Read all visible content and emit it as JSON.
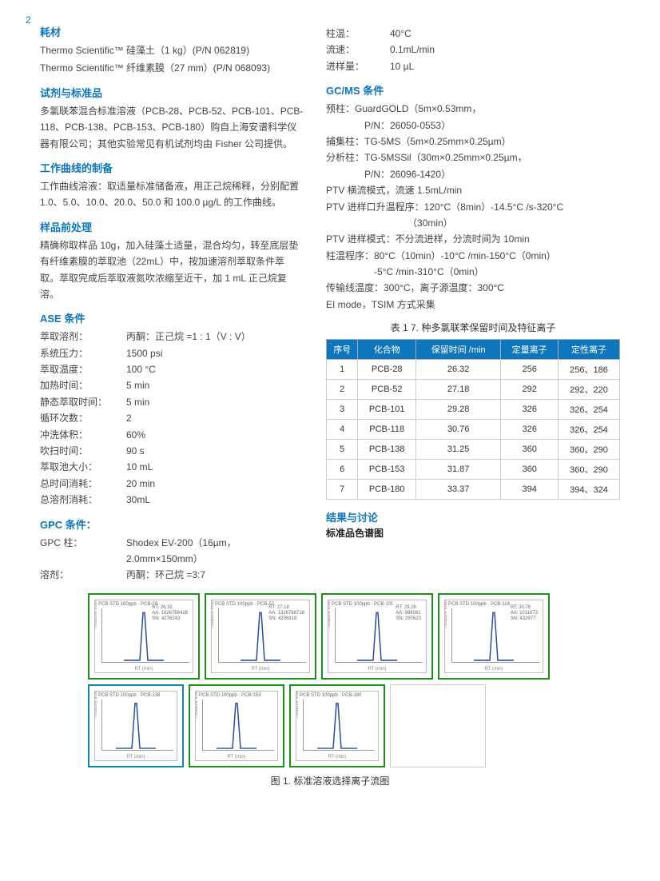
{
  "page_number": "2",
  "left": {
    "consumables": {
      "heading": "耗材",
      "lines": [
        "Thermo Scientific™ 硅藻土（1 kg）(P/N 062819)",
        "Thermo Scientific™ 纤维素膜（27 mm）(P/N 068093)"
      ]
    },
    "reagents": {
      "heading": "试剂与标准品",
      "text": "多氯联苯混合标准溶液（PCB-28、PCB-52、PCB-101、PCB-118、PCB-138、PCB-153、PCB-180）购自上海安谱科学仪器有限公司；其他实验常见有机试剂均由 Fisher 公司提供。"
    },
    "curve": {
      "heading": "工作曲线的制备",
      "text": "工作曲线溶液：取适量标准储备液，用正己烷稀释，分别配置 1.0、5.0、10.0、20.0、50.0 和 100.0 µg/L 的工作曲线。"
    },
    "pretreat": {
      "heading": "样品前处理",
      "text": "精确称取样品 10g，加入硅藻土适量，混合均匀，转至底层垫有纤维素膜的萃取池（22mL）中，按加速溶剂萃取条件萃取。萃取完成后萃取液氮吹浓缩至近干，加 1 mL 正己烷复溶。"
    },
    "ase": {
      "heading": "ASE 条件",
      "rows": [
        {
          "k": "萃取溶剂：",
          "v": "丙酮：正己烷 =1 : 1（V : V）"
        },
        {
          "k": "系统压力：",
          "v": "1500 psi"
        },
        {
          "k": "萃取温度：",
          "v": "100 °C"
        },
        {
          "k": "加热时间：",
          "v": "5 min"
        },
        {
          "k": "静态萃取时间：",
          "v": "5 min"
        },
        {
          "k": "循环次数：",
          "v": "2"
        },
        {
          "k": "冲洗体积：",
          "v": "60%"
        },
        {
          "k": "吹扫时间：",
          "v": "90 s"
        },
        {
          "k": "萃取池大小：",
          "v": "10 mL"
        },
        {
          "k": "总时间消耗：",
          "v": "20 min"
        },
        {
          "k": "总溶剂消耗：",
          "v": "30mL"
        }
      ]
    },
    "gpc": {
      "heading": "GPC 条件：",
      "rows": [
        {
          "k": "GPC 柱：",
          "v": "Shodex EV-200（16µm，2.0mm×150mm）"
        },
        {
          "k": "溶剂：",
          "v": "丙酮：环己烷 =3:7"
        }
      ]
    }
  },
  "right": {
    "gpc_cont": [
      {
        "k": "柱温：",
        "v": "40°C"
      },
      {
        "k": "流速：",
        "v": "0.1mL/min"
      },
      {
        "k": "进样量：",
        "v": "10 µL"
      }
    ],
    "gcms": {
      "heading": "GC/MS 条件",
      "lines": [
        "预柱：GuardGOLD（5m×0.53mm，",
        "　　　　P/N：26050-0553）",
        "捕集柱：TG-5MS（5m×0.25mm×0.25µm）",
        "分析柱：TG-5MSSil（30m×0.25mm×0.25µm，",
        "　　　　P/N：26096-1420）",
        "PTV 横流模式，流速 1.5mL/min",
        "PTV 进样口升温程序：120°C（8min）-14.5°C /s-320°C",
        "　　　　　　　　　（30min）",
        "PTV 进样模式：不分流进样，分流时间为 10min",
        "柱温程序：80°C（10min）-10°C /min-150°C（0min）",
        "　　　　　-5°C /min-310°C（0min）",
        "传输线温度：300°C，离子源温度：300°C",
        "EI mode，TSIM 方式采集"
      ]
    },
    "table": {
      "caption": "表 1 7. 种多氯联苯保留时间及特征离子",
      "headers": [
        "序号",
        "化合物",
        "保留时间 /min",
        "定量离子",
        "定性离子"
      ],
      "rows": [
        [
          "1",
          "PCB-28",
          "26.32",
          "256",
          "256、186"
        ],
        [
          "2",
          "PCB-52",
          "27.18",
          "292",
          "292、220"
        ],
        [
          "3",
          "PCB-101",
          "29.28",
          "326",
          "326、254"
        ],
        [
          "4",
          "PCB-118",
          "30.76",
          "326",
          "326、254"
        ],
        [
          "5",
          "PCB-138",
          "31.25",
          "360",
          "360、290"
        ],
        [
          "6",
          "PCB-153",
          "31.87",
          "360",
          "360、290"
        ],
        [
          "7",
          "PCB-180",
          "33.37",
          "394",
          "394、324"
        ]
      ]
    },
    "results_heading": "结果与讨论",
    "results_sub": "标准品色谱图"
  },
  "chroms": {
    "row1": [
      {
        "border": "#1a8f1a",
        "title": "PCB STD 100ppb · PCB-28",
        "rt": "RT: 26.32",
        "aa": "AA: 1626766428",
        "sn": "SN: 4276243"
      },
      {
        "border": "#1a8f1a",
        "title": "PCB STD 100ppb · PCB-52",
        "rt": "RT: 27.18",
        "aa": "AA: 1326768718",
        "sn": "SN: 4206918"
      },
      {
        "border": "#1a8f1a",
        "title": "PCB STD 100ppb · PCB-101",
        "rt": "RT: 29.28",
        "aa": "AA: 986061",
        "sn": "SN: 297623"
      },
      {
        "border": "#1a8f1a",
        "title": "PCB STD 100ppb · PCB-118",
        "rt": "RT: 30.76",
        "aa": "AA: 1011673",
        "sn": "SN: 432977"
      }
    ],
    "row2": [
      {
        "border": "#0e89a0",
        "title": "PCB STD 100ppb · PCB-138",
        "rt": "",
        "aa": "",
        "sn": ""
      },
      {
        "border": "#1a8f1a",
        "title": "PCB STD 100ppb · PCB-153",
        "rt": "",
        "aa": "",
        "sn": ""
      },
      {
        "border": "#1a8f1a",
        "title": "PCB STD 100ppb · PCB-180",
        "rt": "",
        "aa": "",
        "sn": ""
      }
    ],
    "peak_color": "#2a4ea0",
    "xlabel": "RT (min)",
    "ylabel": "Relative Intensity"
  },
  "figure_caption": "图 1. 标准溶液选择离子流图"
}
